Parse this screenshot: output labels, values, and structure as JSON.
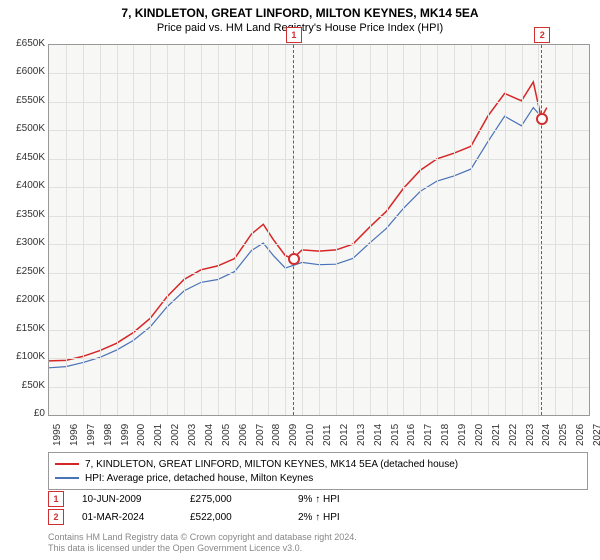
{
  "title": "7, KINDLETON, GREAT LINFORD, MILTON KEYNES, MK14 5EA",
  "subtitle": "Price paid vs. HM Land Registry's House Price Index (HPI)",
  "chart": {
    "type": "line",
    "background_color": "#f7f7f5",
    "grid_color": "#e0e0de",
    "border_color": "#999999",
    "ylim": [
      0,
      650000
    ],
    "ytick_step": 50000,
    "yformat_prefix": "£",
    "yformat_suffix": "K",
    "yformat_divisor": 1000,
    "xlim": [
      1995,
      2027
    ],
    "xtick_step": 1,
    "series": [
      {
        "name": "7, KINDLETON, GREAT LINFORD, MILTON KEYNES, MK14 5EA (detached house)",
        "color": "#d62728",
        "width": 1.5,
        "data": [
          [
            1995,
            95000
          ],
          [
            1996,
            96000
          ],
          [
            1997,
            103000
          ],
          [
            1998,
            113000
          ],
          [
            1999,
            126000
          ],
          [
            2000,
            145000
          ],
          [
            2001,
            170000
          ],
          [
            2002,
            208000
          ],
          [
            2003,
            238000
          ],
          [
            2004,
            255000
          ],
          [
            2005,
            262000
          ],
          [
            2006,
            275000
          ],
          [
            2007,
            318000
          ],
          [
            2007.7,
            335000
          ],
          [
            2008.3,
            308000
          ],
          [
            2009,
            280000
          ],
          [
            2009.45,
            275000
          ],
          [
            2010,
            290000
          ],
          [
            2011,
            288000
          ],
          [
            2012,
            290000
          ],
          [
            2013,
            300000
          ],
          [
            2014,
            330000
          ],
          [
            2015,
            358000
          ],
          [
            2016,
            398000
          ],
          [
            2017,
            430000
          ],
          [
            2018,
            450000
          ],
          [
            2019,
            460000
          ],
          [
            2020,
            472000
          ],
          [
            2021,
            525000
          ],
          [
            2022,
            565000
          ],
          [
            2023,
            552000
          ],
          [
            2023.7,
            585000
          ],
          [
            2024.17,
            522000
          ],
          [
            2024.5,
            540000
          ]
        ]
      },
      {
        "name": "HPI: Average price, detached house, Milton Keynes",
        "color": "#4a72b8",
        "width": 1.2,
        "data": [
          [
            1995,
            83000
          ],
          [
            1996,
            85000
          ],
          [
            1997,
            92000
          ],
          [
            1998,
            101000
          ],
          [
            1999,
            114000
          ],
          [
            2000,
            131000
          ],
          [
            2001,
            155000
          ],
          [
            2002,
            190000
          ],
          [
            2003,
            218000
          ],
          [
            2004,
            233000
          ],
          [
            2005,
            238000
          ],
          [
            2006,
            252000
          ],
          [
            2007,
            289000
          ],
          [
            2007.7,
            302000
          ],
          [
            2008.3,
            280000
          ],
          [
            2009,
            258000
          ],
          [
            2010,
            268000
          ],
          [
            2011,
            264000
          ],
          [
            2012,
            265000
          ],
          [
            2013,
            275000
          ],
          [
            2014,
            302000
          ],
          [
            2015,
            328000
          ],
          [
            2016,
            363000
          ],
          [
            2017,
            393000
          ],
          [
            2018,
            411000
          ],
          [
            2019,
            420000
          ],
          [
            2020,
            432000
          ],
          [
            2021,
            480000
          ],
          [
            2022,
            525000
          ],
          [
            2023,
            508000
          ],
          [
            2023.7,
            540000
          ],
          [
            2024.3,
            520000
          ],
          [
            2024.5,
            522000
          ]
        ]
      }
    ],
    "markers": [
      {
        "id": "1",
        "x": 2009.45,
        "y": 275000
      },
      {
        "id": "2",
        "x": 2024.17,
        "y": 522000
      }
    ]
  },
  "legend": {
    "items": [
      {
        "color": "#d62728",
        "label": "7, KINDLETON, GREAT LINFORD, MILTON KEYNES, MK14 5EA (detached house)"
      },
      {
        "color": "#4a72b8",
        "label": "HPI: Average price, detached house, Milton Keynes"
      }
    ]
  },
  "events": [
    {
      "id": "1",
      "date": "10-JUN-2009",
      "price": "£275,000",
      "delta": "9% ↑ HPI"
    },
    {
      "id": "2",
      "date": "01-MAR-2024",
      "price": "£522,000",
      "delta": "2% ↑ HPI"
    }
  ],
  "footer_line1": "Contains HM Land Registry data © Crown copyright and database right 2024.",
  "footer_line2": "This data is licensed under the Open Government Licence v3.0."
}
